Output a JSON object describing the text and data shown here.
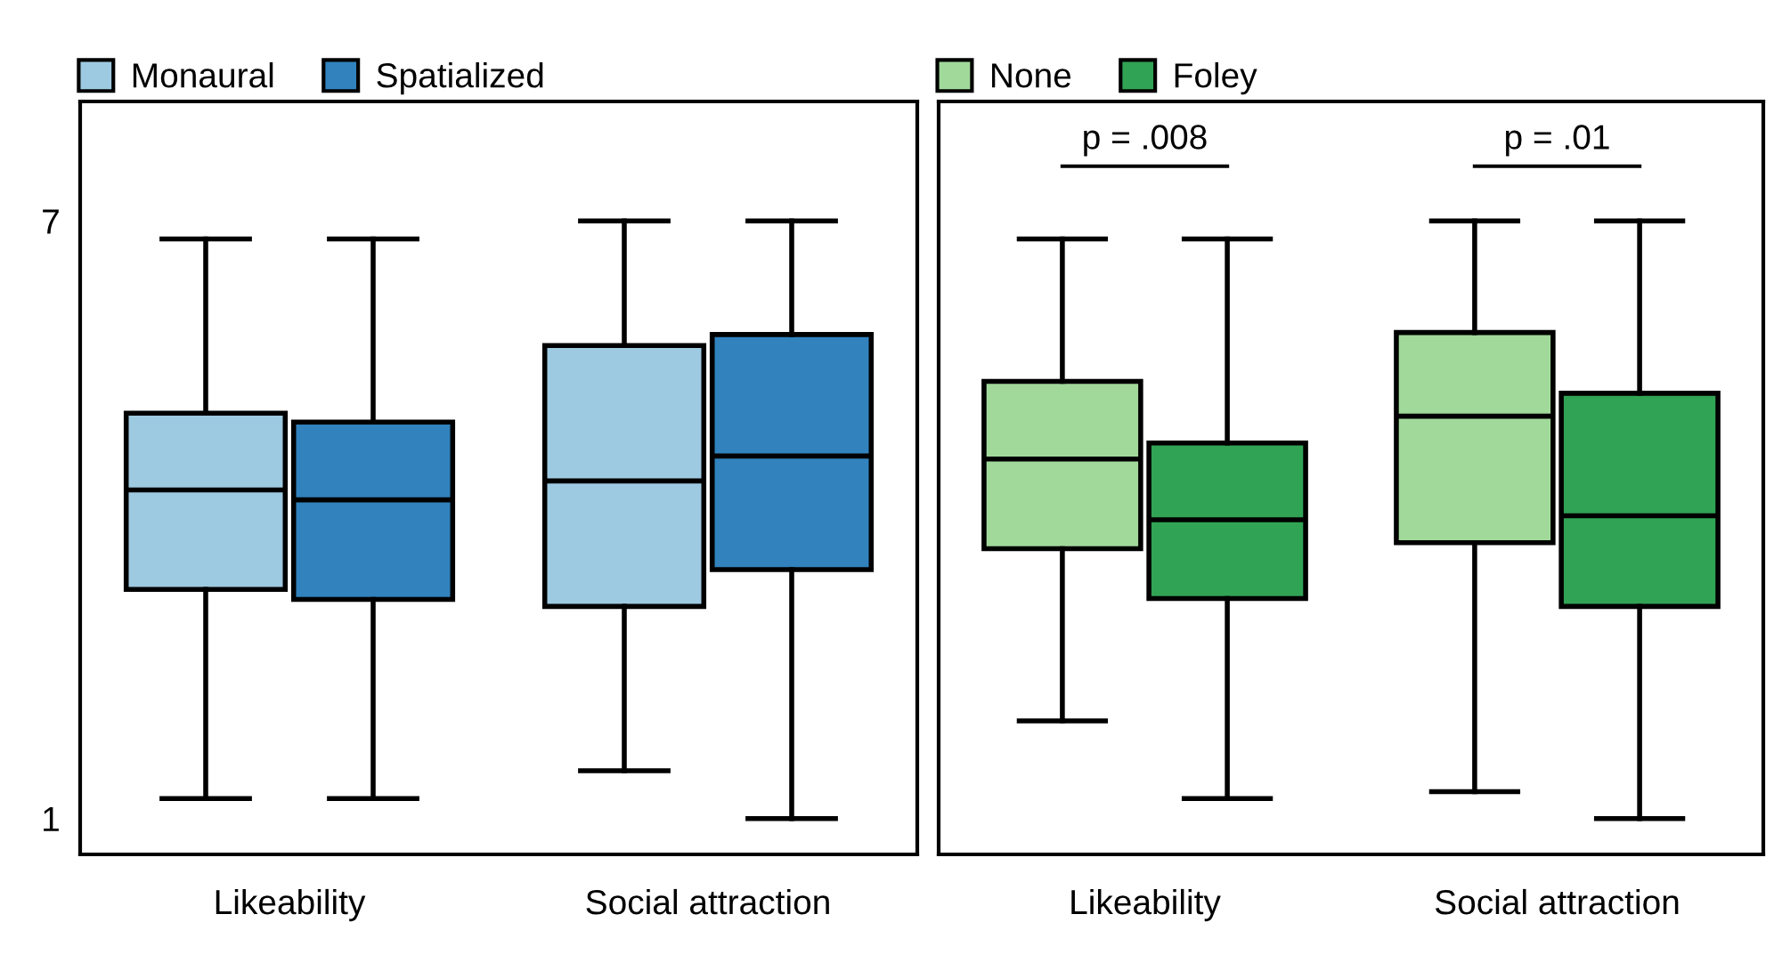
{
  "chart_data": [
    {
      "type": "box",
      "categories": [
        "Likeability",
        "Social attraction"
      ],
      "ylim": [
        0.64,
        8.2
      ],
      "yticks": [
        1,
        7
      ],
      "legend": "top",
      "series": [
        {
          "name": "Monaural",
          "color": "#9ecae1",
          "boxes": [
            {
              "low": 1.2,
              "q1": 3.3,
              "median": 4.3,
              "q3": 5.07,
              "high": 6.82
            },
            {
              "low": 1.48,
              "q1": 3.13,
              "median": 4.39,
              "q3": 5.75,
              "high": 7.0
            }
          ]
        },
        {
          "name": "Spatialized",
          "color": "#3182bd",
          "boxes": [
            {
              "low": 1.2,
              "q1": 3.2,
              "median": 4.2,
              "q3": 4.98,
              "high": 6.82
            },
            {
              "low": 1.0,
              "q1": 3.5,
              "median": 4.64,
              "q3": 5.86,
              "high": 7.0
            }
          ]
        }
      ]
    },
    {
      "type": "box",
      "categories": [
        "Likeability",
        "Social attraction"
      ],
      "ylim": [
        0.64,
        8.2
      ],
      "yticks": [
        1,
        7
      ],
      "tick_labels": "x",
      "legend": "top",
      "annotations": [
        "p = .008",
        "p = .01"
      ],
      "series": [
        {
          "name": "None",
          "color": "#a1d99b",
          "boxes": [
            {
              "low": 1.98,
              "q1": 3.71,
              "median": 4.61,
              "q3": 5.39,
              "high": 6.82
            },
            {
              "low": 1.27,
              "q1": 3.77,
              "median": 5.04,
              "q3": 5.88,
              "high": 7.0
            }
          ]
        },
        {
          "name": "Foley",
          "color": "#31a354",
          "boxes": [
            {
              "low": 1.2,
              "q1": 3.21,
              "median": 4.0,
              "q3": 4.77,
              "high": 6.82
            },
            {
              "low": 1.0,
              "q1": 3.13,
              "median": 4.04,
              "q3": 5.27,
              "high": 7.0
            }
          ]
        }
      ]
    }
  ]
}
